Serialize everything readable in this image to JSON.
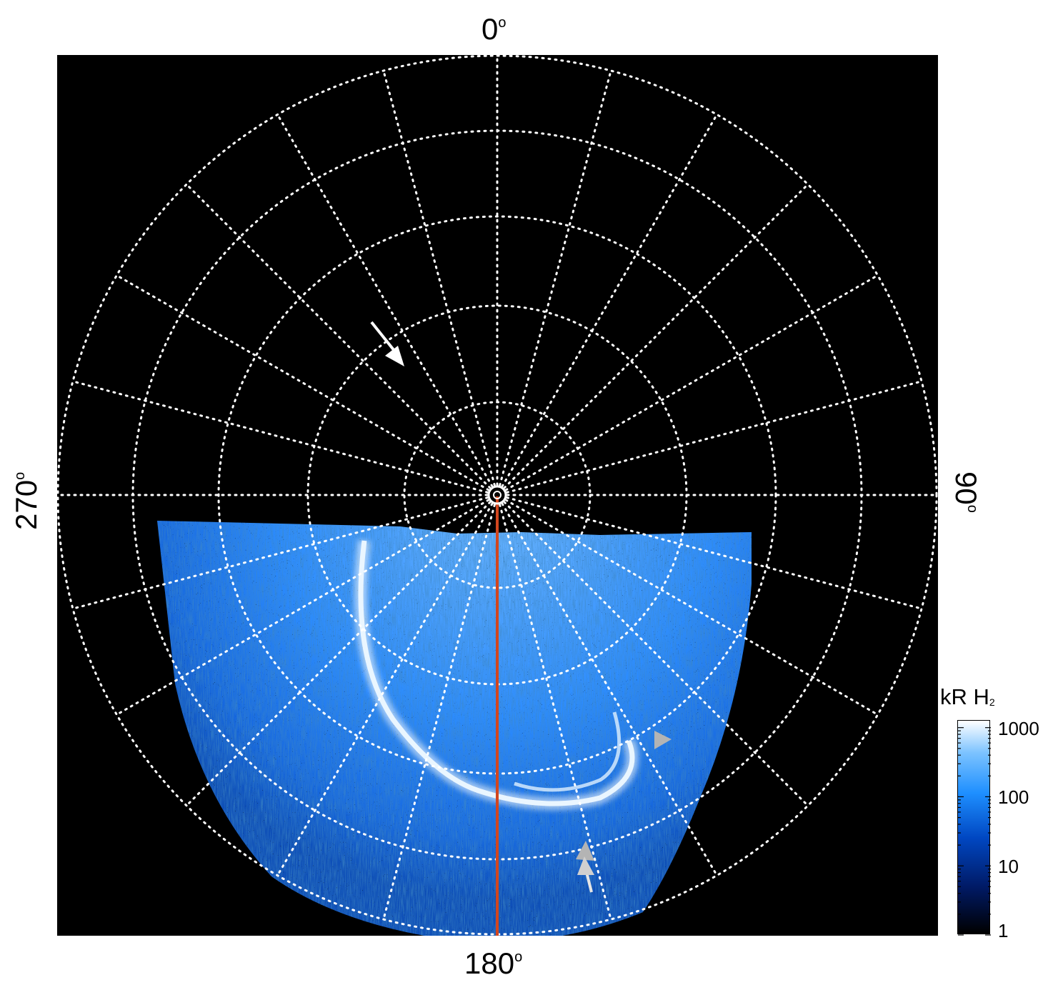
{
  "axis_labels": {
    "top": "0",
    "bottom": "180",
    "left": "270",
    "right": "90",
    "degree_symbol": "o"
  },
  "colorbar": {
    "title_main": "kR H",
    "title_sub": "2",
    "scale": "log",
    "tick_labels": [
      "1000",
      "100",
      "10",
      "1"
    ],
    "colors": [
      "#000000",
      "#001a66",
      "#0047c2",
      "#1e8fff",
      "#7cc3ff",
      "#ffffff"
    ]
  },
  "colors": {
    "background": "#000000",
    "grid": "#ffffff",
    "meridian_line": "#d2461e",
    "arrow_white": "#ffffff",
    "arrow_grey": "#b4b4b4"
  }
}
